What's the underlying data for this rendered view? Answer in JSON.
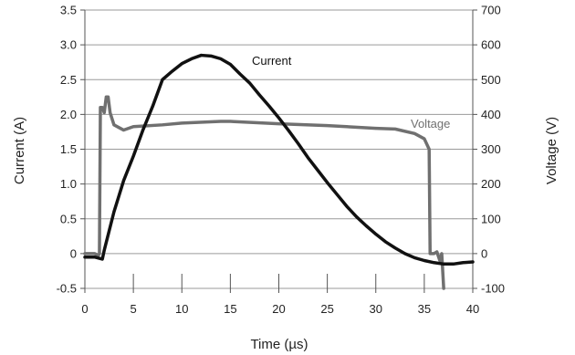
{
  "chart_data": {
    "type": "line",
    "xlabel": "Time (µs)",
    "ylabel_left": "Current (A)",
    "ylabel_right": "Voltage (V)",
    "xlim": [
      0,
      40
    ],
    "ylim_left": [
      -0.5,
      3.5
    ],
    "ylim_right": [
      -100,
      700
    ],
    "x_ticks": [
      "0",
      "5",
      "10",
      "15",
      "20",
      "25",
      "30",
      "35",
      "40"
    ],
    "y_left_ticks": [
      "3.5",
      "3.0",
      "2.5",
      "2.0",
      "1.5",
      "1.0",
      "0.5",
      "0",
      "-0.5"
    ],
    "y_right_ticks": [
      "700",
      "600",
      "500",
      "400",
      "300",
      "200",
      "100",
      "0",
      "-100"
    ],
    "grid": "horizontal",
    "colors": {
      "current": "#111111",
      "voltage": "#707070",
      "grid": "#9a9a9a"
    },
    "series": [
      {
        "name": "Current",
        "axis": "left",
        "points": [
          [
            0,
            -0.05
          ],
          [
            1,
            -0.05
          ],
          [
            1.8,
            -0.08
          ],
          [
            2,
            0.05
          ],
          [
            3,
            0.6
          ],
          [
            4,
            1.05
          ],
          [
            5,
            1.4
          ],
          [
            6,
            1.78
          ],
          [
            7,
            2.12
          ],
          [
            8,
            2.5
          ],
          [
            9,
            2.62
          ],
          [
            10,
            2.73
          ],
          [
            11,
            2.8
          ],
          [
            12,
            2.85
          ],
          [
            13,
            2.84
          ],
          [
            14,
            2.8
          ],
          [
            15,
            2.72
          ],
          [
            16,
            2.58
          ],
          [
            17,
            2.45
          ],
          [
            18,
            2.28
          ],
          [
            19,
            2.12
          ],
          [
            20,
            1.95
          ],
          [
            21,
            1.77
          ],
          [
            22,
            1.58
          ],
          [
            23,
            1.38
          ],
          [
            24,
            1.2
          ],
          [
            25,
            1.02
          ],
          [
            26,
            0.85
          ],
          [
            27,
            0.68
          ],
          [
            28,
            0.53
          ],
          [
            29,
            0.4
          ],
          [
            30,
            0.28
          ],
          [
            31,
            0.17
          ],
          [
            32,
            0.08
          ],
          [
            33,
            0.0
          ],
          [
            34,
            -0.06
          ],
          [
            35,
            -0.1
          ],
          [
            36,
            -0.13
          ],
          [
            37,
            -0.15
          ],
          [
            38,
            -0.15
          ],
          [
            39,
            -0.13
          ],
          [
            40,
            -0.12
          ]
        ]
      },
      {
        "name": "Voltage",
        "axis": "right",
        "points": [
          [
            0,
            0
          ],
          [
            1,
            0
          ],
          [
            1.4,
            -5
          ],
          [
            1.5,
            0
          ],
          [
            1.6,
            420
          ],
          [
            1.8,
            420
          ],
          [
            2,
            405
          ],
          [
            2.2,
            450
          ],
          [
            2.4,
            450
          ],
          [
            2.6,
            405
          ],
          [
            3,
            370
          ],
          [
            4,
            355
          ],
          [
            5,
            365
          ],
          [
            8,
            370
          ],
          [
            10,
            375
          ],
          [
            14,
            380
          ],
          [
            15,
            380
          ],
          [
            20,
            373
          ],
          [
            25,
            368
          ],
          [
            30,
            360
          ],
          [
            32,
            358
          ],
          [
            34,
            345
          ],
          [
            35,
            330
          ],
          [
            35.5,
            300
          ],
          [
            35.6,
            0
          ],
          [
            36,
            0
          ],
          [
            36.3,
            5
          ],
          [
            36.6,
            -20
          ],
          [
            36.8,
            0
          ],
          [
            37,
            -100
          ]
        ]
      }
    ]
  }
}
